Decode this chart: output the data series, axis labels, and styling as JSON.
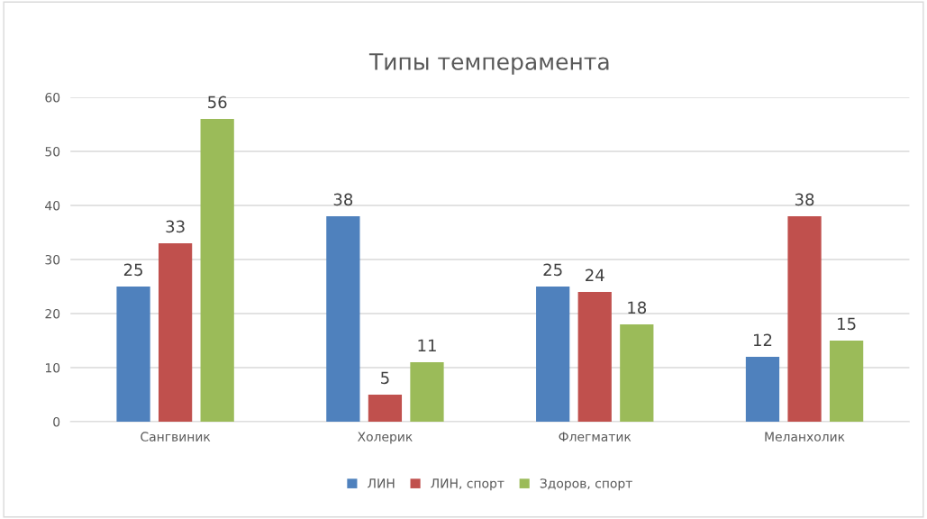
{
  "chart_data": {
    "type": "bar",
    "title": "Типы темперамента",
    "categories": [
      "Сангвиник",
      "Холерик",
      "Флегматик",
      "Меланхолик"
    ],
    "series": [
      {
        "name": "ЛИН",
        "color": "#4f81bd",
        "values": [
          25,
          38,
          25,
          12
        ]
      },
      {
        "name": "ЛИН, спорт",
        "color": "#c0504d",
        "values": [
          33,
          5,
          24,
          38
        ]
      },
      {
        "name": "Здоров, спорт",
        "color": "#9bbb59",
        "values": [
          56,
          11,
          18,
          15
        ]
      }
    ],
    "ylim": [
      0,
      60
    ],
    "yticks": [
      0,
      10,
      20,
      30,
      40,
      50,
      60
    ],
    "grid": "y",
    "legend": "bottom",
    "data_labels": true
  }
}
